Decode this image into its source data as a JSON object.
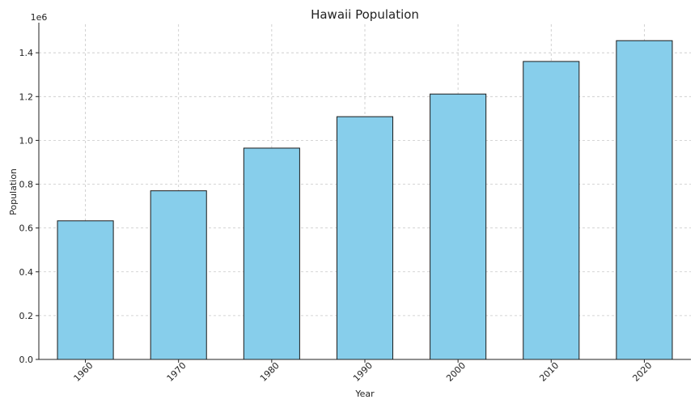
{
  "chart_data": {
    "type": "bar",
    "title": "Hawaii Population",
    "xlabel": "Year",
    "ylabel": "Population",
    "y_offset_label": "1e6",
    "categories": [
      "1960",
      "1970",
      "1980",
      "1990",
      "2000",
      "2010",
      "2020"
    ],
    "values": [
      632772,
      769913,
      964691,
      1108229,
      1211537,
      1360301,
      1455271
    ],
    "ylim": [
      0,
      1530000
    ],
    "yticks": [
      0,
      200000,
      400000,
      600000,
      800000,
      1000000,
      1200000,
      1400000
    ],
    "ytick_labels": [
      "0.0",
      "0.2",
      "0.4",
      "0.6",
      "0.8",
      "1.0",
      "1.2",
      "1.4"
    ],
    "grid": true,
    "bar_color": "#87ceeb",
    "edge_color": "#1a1a1a"
  }
}
